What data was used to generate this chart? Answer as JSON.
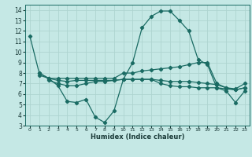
{
  "title": "",
  "xlabel": "Humidex (Indice chaleur)",
  "bg_color": "#c5e8e5",
  "grid_color": "#aed4d0",
  "line_color": "#1a6b63",
  "xlim": [
    -0.5,
    23.5
  ],
  "ylim": [
    3,
    14.5
  ],
  "yticks": [
    3,
    4,
    5,
    6,
    7,
    8,
    9,
    10,
    11,
    12,
    13,
    14
  ],
  "xticks": [
    0,
    1,
    2,
    3,
    4,
    5,
    6,
    7,
    8,
    9,
    10,
    11,
    12,
    13,
    14,
    15,
    16,
    17,
    18,
    19,
    20,
    21,
    22,
    23
  ],
  "line1_x": [
    0,
    1,
    2,
    3,
    4,
    5,
    6,
    7,
    8,
    9,
    10,
    11,
    12,
    13,
    14,
    15,
    16,
    17,
    18,
    19,
    20,
    21,
    22,
    23
  ],
  "line1_y": [
    11.5,
    8.0,
    7.5,
    6.8,
    5.3,
    5.2,
    5.5,
    3.8,
    3.3,
    4.4,
    7.4,
    9.0,
    12.3,
    13.4,
    13.9,
    13.9,
    13.0,
    12.0,
    9.3,
    8.8,
    6.6,
    6.3,
    5.2,
    6.3
  ],
  "line2_x": [
    1,
    2,
    3,
    4,
    5,
    6,
    7,
    8,
    9,
    10,
    11,
    12,
    13,
    14,
    15,
    16,
    17,
    18,
    19,
    20,
    21,
    22,
    23
  ],
  "line2_y": [
    8.0,
    7.5,
    7.5,
    7.5,
    7.5,
    7.5,
    7.5,
    7.5,
    7.5,
    8.0,
    8.0,
    8.2,
    8.3,
    8.4,
    8.5,
    8.6,
    8.8,
    9.0,
    9.0,
    7.0,
    6.6,
    6.5,
    7.0
  ],
  "line3_x": [
    1,
    2,
    3,
    4,
    5,
    6,
    7,
    8,
    9,
    10,
    11,
    12,
    13,
    14,
    15,
    16,
    17,
    18,
    19,
    20,
    21,
    22,
    23
  ],
  "line3_y": [
    7.8,
    7.5,
    7.3,
    7.2,
    7.3,
    7.3,
    7.3,
    7.3,
    7.3,
    7.4,
    7.4,
    7.4,
    7.4,
    7.0,
    6.8,
    6.7,
    6.7,
    6.6,
    6.6,
    6.6,
    6.5,
    6.4,
    6.6
  ],
  "line4_x": [
    2,
    3,
    4,
    5,
    6,
    7,
    8,
    9,
    10,
    11,
    12,
    13,
    14,
    15,
    16,
    17,
    18,
    19,
    20,
    21,
    22,
    23
  ],
  "line4_y": [
    7.3,
    7.0,
    6.8,
    6.8,
    7.0,
    7.2,
    7.2,
    7.3,
    7.4,
    7.4,
    7.4,
    7.4,
    7.3,
    7.2,
    7.2,
    7.2,
    7.1,
    7.0,
    6.9,
    6.6,
    6.4,
    6.6
  ]
}
